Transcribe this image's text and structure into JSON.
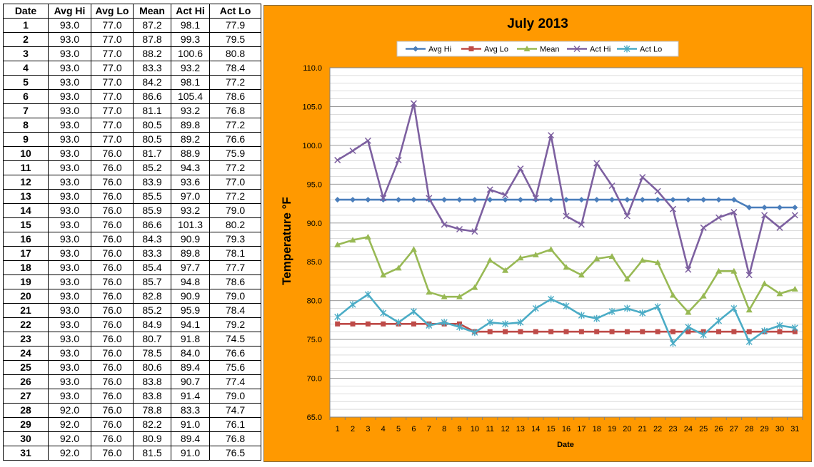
{
  "table": {
    "headers": [
      "Date",
      "Avg Hi",
      "Avg Lo",
      "Mean",
      "Act Hi",
      "Act Lo"
    ],
    "rows": [
      [
        "1",
        "93.0",
        "77.0",
        "87.2",
        "98.1",
        "77.9"
      ],
      [
        "2",
        "93.0",
        "77.0",
        "87.8",
        "99.3",
        "79.5"
      ],
      [
        "3",
        "93.0",
        "77.0",
        "88.2",
        "100.6",
        "80.8"
      ],
      [
        "4",
        "93.0",
        "77.0",
        "83.3",
        "93.2",
        "78.4"
      ],
      [
        "5",
        "93.0",
        "77.0",
        "84.2",
        "98.1",
        "77.2"
      ],
      [
        "6",
        "93.0",
        "77.0",
        "86.6",
        "105.4",
        "78.6"
      ],
      [
        "7",
        "93.0",
        "77.0",
        "81.1",
        "93.2",
        "76.8"
      ],
      [
        "8",
        "93.0",
        "77.0",
        "80.5",
        "89.8",
        "77.2"
      ],
      [
        "9",
        "93.0",
        "77.0",
        "80.5",
        "89.2",
        "76.6"
      ],
      [
        "10",
        "93.0",
        "76.0",
        "81.7",
        "88.9",
        "75.9"
      ],
      [
        "11",
        "93.0",
        "76.0",
        "85.2",
        "94.3",
        "77.2"
      ],
      [
        "12",
        "93.0",
        "76.0",
        "83.9",
        "93.6",
        "77.0"
      ],
      [
        "13",
        "93.0",
        "76.0",
        "85.5",
        "97.0",
        "77.2"
      ],
      [
        "14",
        "93.0",
        "76.0",
        "85.9",
        "93.2",
        "79.0"
      ],
      [
        "15",
        "93.0",
        "76.0",
        "86.6",
        "101.3",
        "80.2"
      ],
      [
        "16",
        "93.0",
        "76.0",
        "84.3",
        "90.9",
        "79.3"
      ],
      [
        "17",
        "93.0",
        "76.0",
        "83.3",
        "89.8",
        "78.1"
      ],
      [
        "18",
        "93.0",
        "76.0",
        "85.4",
        "97.7",
        "77.7"
      ],
      [
        "19",
        "93.0",
        "76.0",
        "85.7",
        "94.8",
        "78.6"
      ],
      [
        "20",
        "93.0",
        "76.0",
        "82.8",
        "90.9",
        "79.0"
      ],
      [
        "21",
        "93.0",
        "76.0",
        "85.2",
        "95.9",
        "78.4"
      ],
      [
        "22",
        "93.0",
        "76.0",
        "84.9",
        "94.1",
        "79.2"
      ],
      [
        "23",
        "93.0",
        "76.0",
        "80.7",
        "91.8",
        "74.5"
      ],
      [
        "24",
        "93.0",
        "76.0",
        "78.5",
        "84.0",
        "76.6"
      ],
      [
        "25",
        "93.0",
        "76.0",
        "80.6",
        "89.4",
        "75.6"
      ],
      [
        "26",
        "93.0",
        "76.0",
        "83.8",
        "90.7",
        "77.4"
      ],
      [
        "27",
        "93.0",
        "76.0",
        "83.8",
        "91.4",
        "79.0"
      ],
      [
        "28",
        "92.0",
        "76.0",
        "78.8",
        "83.3",
        "74.7"
      ],
      [
        "29",
        "92.0",
        "76.0",
        "82.2",
        "91.0",
        "76.1"
      ],
      [
        "30",
        "92.0",
        "76.0",
        "80.9",
        "89.4",
        "76.8"
      ],
      [
        "31",
        "92.0",
        "76.0",
        "81.5",
        "91.0",
        "76.5"
      ]
    ]
  },
  "chart_data": {
    "type": "line",
    "title": "July 2013",
    "xlabel": "Date",
    "ylabel": "Temperature °F",
    "x": [
      1,
      2,
      3,
      4,
      5,
      6,
      7,
      8,
      9,
      10,
      11,
      12,
      13,
      14,
      15,
      16,
      17,
      18,
      19,
      20,
      21,
      22,
      23,
      24,
      25,
      26,
      27,
      28,
      29,
      30,
      31
    ],
    "ylim": [
      65,
      110
    ],
    "yticks": [
      "65.0",
      "70.0",
      "75.0",
      "80.0",
      "85.0",
      "90.0",
      "95.0",
      "100.0",
      "105.0",
      "110.0"
    ],
    "grid": true,
    "legend_position": "top",
    "background": "#ff9900",
    "series": [
      {
        "name": "Avg Hi",
        "color": "#4a7ebb",
        "marker": "diamond",
        "values": [
          93,
          93,
          93,
          93,
          93,
          93,
          93,
          93,
          93,
          93,
          93,
          93,
          93,
          93,
          93,
          93,
          93,
          93,
          93,
          93,
          93,
          93,
          93,
          93,
          93,
          93,
          93,
          92,
          92,
          92,
          92
        ]
      },
      {
        "name": "Avg Lo",
        "color": "#be4b48",
        "marker": "square",
        "values": [
          77,
          77,
          77,
          77,
          77,
          77,
          77,
          77,
          77,
          76,
          76,
          76,
          76,
          76,
          76,
          76,
          76,
          76,
          76,
          76,
          76,
          76,
          76,
          76,
          76,
          76,
          76,
          76,
          76,
          76,
          76
        ]
      },
      {
        "name": "Mean",
        "color": "#98b954",
        "marker": "triangle",
        "values": [
          87.2,
          87.8,
          88.2,
          83.3,
          84.2,
          86.6,
          81.1,
          80.5,
          80.5,
          81.7,
          85.2,
          83.9,
          85.5,
          85.9,
          86.6,
          84.3,
          83.3,
          85.4,
          85.7,
          82.8,
          85.2,
          84.9,
          80.7,
          78.5,
          80.6,
          83.8,
          83.8,
          78.8,
          82.2,
          80.9,
          81.5
        ]
      },
      {
        "name": "Act Hi",
        "color": "#7d60a0",
        "marker": "x",
        "values": [
          98.1,
          99.3,
          100.6,
          93.2,
          98.1,
          105.4,
          93.2,
          89.8,
          89.2,
          88.9,
          94.3,
          93.6,
          97.0,
          93.2,
          101.3,
          90.9,
          89.8,
          97.7,
          94.8,
          90.9,
          95.9,
          94.1,
          91.8,
          84.0,
          89.4,
          90.7,
          91.4,
          83.3,
          91.0,
          89.4,
          91.0
        ]
      },
      {
        "name": "Act Lo",
        "color": "#4bacc6",
        "marker": "star",
        "values": [
          77.9,
          79.5,
          80.8,
          78.4,
          77.2,
          78.6,
          76.8,
          77.2,
          76.6,
          75.9,
          77.2,
          77.0,
          77.2,
          79.0,
          80.2,
          79.3,
          78.1,
          77.7,
          78.6,
          79.0,
          78.4,
          79.2,
          74.5,
          76.6,
          75.6,
          77.4,
          79.0,
          74.7,
          76.1,
          76.8,
          76.5
        ]
      }
    ]
  }
}
